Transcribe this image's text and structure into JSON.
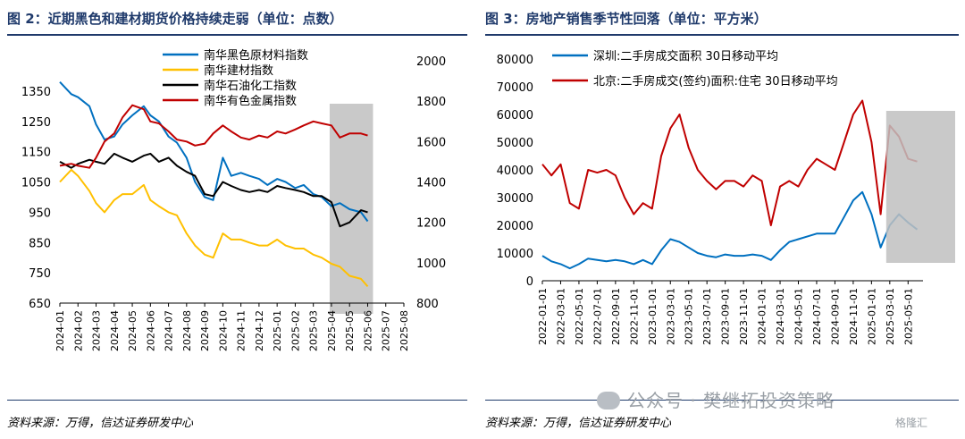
{
  "left_panel": {
    "title": "图 2：近期黑色和建材期货价格持续走弱（单位：点数）",
    "source": "资料来源：万得，信达证券研发中心"
  },
  "right_panel": {
    "title": "图 3：房地产销售季节性回落（单位：平方米）",
    "source": "资料来源：万得，信达证券研发中心"
  },
  "watermark": {
    "text": "公众号 · 樊继拓投资策略",
    "icon": "wechat-icon"
  },
  "logo": {
    "text": "格隆汇"
  },
  "colors": {
    "title": "#1f3a6b",
    "blue": "#0070c0",
    "yellow": "#ffc000",
    "black": "#000000",
    "red": "#c00000",
    "shade": "#bfbfbf"
  },
  "chart_data": [
    {
      "type": "line",
      "title": "",
      "x_labels": [
        "2024-01",
        "2024-02",
        "2024-03",
        "2024-04",
        "2024-05",
        "2024-06",
        "2024-07",
        "2024-08",
        "2024-09",
        "2024-10",
        "2024-11",
        "2024-12",
        "2025-01",
        "2025-02",
        "2025-03",
        "2025-04",
        "2025-05",
        "2025-06",
        "2025-07",
        "2025-08"
      ],
      "y_left": {
        "min": 650,
        "max": 1450,
        "ticks": [
          650,
          750,
          850,
          950,
          1050,
          1150,
          1250,
          1350
        ]
      },
      "y_right": {
        "min": 800,
        "max": 2000,
        "ticks": [
          800,
          1000,
          1200,
          1400,
          1600,
          1800,
          2000
        ]
      },
      "legend_position": "top-right",
      "shaded_region": {
        "from": "2025-04",
        "to": "2025-06"
      },
      "series": [
        {
          "name": "南华黑色原材料指数",
          "axis": "left",
          "color": "#0070c0",
          "points": [
            [
              "2024-01",
              1380
            ],
            [
              "2024-01-20",
              1340
            ],
            [
              "2024-02",
              1330
            ],
            [
              "2024-02-20",
              1300
            ],
            [
              "2024-03",
              1240
            ],
            [
              "2024-03-15",
              1190
            ],
            [
              "2024-04",
              1200
            ],
            [
              "2024-04-15",
              1240
            ],
            [
              "2024-05",
              1270
            ],
            [
              "2024-05-20",
              1300
            ],
            [
              "2024-06",
              1270
            ],
            [
              "2024-06-15",
              1250
            ],
            [
              "2024-07",
              1200
            ],
            [
              "2024-07-15",
              1180
            ],
            [
              "2024-08",
              1130
            ],
            [
              "2024-08-15",
              1050
            ],
            [
              "2024-09",
              1000
            ],
            [
              "2024-09-15",
              990
            ],
            [
              "2024-10",
              1130
            ],
            [
              "2024-10-15",
              1070
            ],
            [
              "2024-11",
              1080
            ],
            [
              "2024-11-15",
              1070
            ],
            [
              "2024-12",
              1060
            ],
            [
              "2024-12-15",
              1040
            ],
            [
              "2025-01",
              1060
            ],
            [
              "2025-01-15",
              1050
            ],
            [
              "2025-02",
              1030
            ],
            [
              "2025-02-15",
              1040
            ],
            [
              "2025-03",
              1010
            ],
            [
              "2025-03-15",
              1000
            ],
            [
              "2025-04",
              970
            ],
            [
              "2025-04-15",
              980
            ],
            [
              "2025-05",
              960
            ],
            [
              "2025-05-20",
              950
            ],
            [
              "2025-06",
              920
            ]
          ]
        },
        {
          "name": "南华建材指数",
          "axis": "left",
          "color": "#ffc000",
          "points": [
            [
              "2024-01",
              1050
            ],
            [
              "2024-01-20",
              1090
            ],
            [
              "2024-02",
              1070
            ],
            [
              "2024-02-20",
              1020
            ],
            [
              "2024-03",
              980
            ],
            [
              "2024-03-15",
              950
            ],
            [
              "2024-04",
              990
            ],
            [
              "2024-04-15",
              1010
            ],
            [
              "2024-05",
              1010
            ],
            [
              "2024-05-20",
              1040
            ],
            [
              "2024-06",
              990
            ],
            [
              "2024-06-15",
              970
            ],
            [
              "2024-07",
              950
            ],
            [
              "2024-07-15",
              940
            ],
            [
              "2024-08",
              880
            ],
            [
              "2024-08-15",
              840
            ],
            [
              "2024-09",
              810
            ],
            [
              "2024-09-15",
              800
            ],
            [
              "2024-10",
              880
            ],
            [
              "2024-10-15",
              860
            ],
            [
              "2024-11",
              860
            ],
            [
              "2024-11-15",
              850
            ],
            [
              "2024-12",
              840
            ],
            [
              "2024-12-15",
              840
            ],
            [
              "2025-01",
              860
            ],
            [
              "2025-01-15",
              840
            ],
            [
              "2025-02",
              830
            ],
            [
              "2025-02-15",
              830
            ],
            [
              "2025-03",
              810
            ],
            [
              "2025-03-15",
              800
            ],
            [
              "2025-04",
              780
            ],
            [
              "2025-04-15",
              770
            ],
            [
              "2025-05",
              740
            ],
            [
              "2025-05-20",
              730
            ],
            [
              "2025-06",
              705
            ]
          ]
        },
        {
          "name": "南华石油化工指数",
          "axis": "right",
          "color": "#000000",
          "points": [
            [
              "2024-01",
              1500
            ],
            [
              "2024-01-20",
              1470
            ],
            [
              "2024-02",
              1490
            ],
            [
              "2024-02-20",
              1510
            ],
            [
              "2024-03",
              1500
            ],
            [
              "2024-03-15",
              1490
            ],
            [
              "2024-04",
              1540
            ],
            [
              "2024-04-15",
              1520
            ],
            [
              "2024-05",
              1500
            ],
            [
              "2024-05-20",
              1530
            ],
            [
              "2024-06",
              1540
            ],
            [
              "2024-06-15",
              1500
            ],
            [
              "2024-07",
              1520
            ],
            [
              "2024-07-15",
              1480
            ],
            [
              "2024-08",
              1450
            ],
            [
              "2024-08-15",
              1430
            ],
            [
              "2024-09",
              1340
            ],
            [
              "2024-09-15",
              1330
            ],
            [
              "2024-10",
              1400
            ],
            [
              "2024-10-15",
              1380
            ],
            [
              "2024-11",
              1360
            ],
            [
              "2024-11-15",
              1350
            ],
            [
              "2024-12",
              1360
            ],
            [
              "2024-12-15",
              1350
            ],
            [
              "2025-01",
              1380
            ],
            [
              "2025-01-15",
              1370
            ],
            [
              "2025-02",
              1360
            ],
            [
              "2025-02-15",
              1350
            ],
            [
              "2025-03",
              1330
            ],
            [
              "2025-03-15",
              1330
            ],
            [
              "2025-04",
              1300
            ],
            [
              "2025-04-15",
              1180
            ],
            [
              "2025-05",
              1200
            ],
            [
              "2025-05-20",
              1260
            ],
            [
              "2025-06",
              1250
            ]
          ]
        },
        {
          "name": "南华有色金属指数",
          "axis": "right",
          "color": "#c00000",
          "points": [
            [
              "2024-01",
              1480
            ],
            [
              "2024-01-20",
              1490
            ],
            [
              "2024-02",
              1480
            ],
            [
              "2024-02-20",
              1470
            ],
            [
              "2024-03",
              1520
            ],
            [
              "2024-03-15",
              1600
            ],
            [
              "2024-04",
              1640
            ],
            [
              "2024-04-15",
              1720
            ],
            [
              "2024-05",
              1780
            ],
            [
              "2024-05-20",
              1760
            ],
            [
              "2024-06",
              1700
            ],
            [
              "2024-06-15",
              1690
            ],
            [
              "2024-07",
              1650
            ],
            [
              "2024-07-15",
              1610
            ],
            [
              "2024-08",
              1600
            ],
            [
              "2024-08-15",
              1580
            ],
            [
              "2024-09",
              1590
            ],
            [
              "2024-09-15",
              1640
            ],
            [
              "2024-10",
              1680
            ],
            [
              "2024-10-15",
              1650
            ],
            [
              "2024-11",
              1620
            ],
            [
              "2024-11-15",
              1610
            ],
            [
              "2024-12",
              1630
            ],
            [
              "2024-12-15",
              1620
            ],
            [
              "2025-01",
              1650
            ],
            [
              "2025-01-15",
              1640
            ],
            [
              "2025-02",
              1660
            ],
            [
              "2025-02-15",
              1680
            ],
            [
              "2025-03",
              1700
            ],
            [
              "2025-03-15",
              1690
            ],
            [
              "2025-04",
              1680
            ],
            [
              "2025-04-15",
              1620
            ],
            [
              "2025-05",
              1640
            ],
            [
              "2025-05-20",
              1640
            ],
            [
              "2025-06",
              1630
            ]
          ]
        }
      ]
    },
    {
      "type": "line",
      "title": "",
      "x_labels": [
        "2022-01-01",
        "2022-03-01",
        "2022-05-01",
        "2022-07-01",
        "2022-09-01",
        "2022-11-01",
        "2023-01-01",
        "2023-03-01",
        "2023-05-01",
        "2023-07-01",
        "2023-09-01",
        "2023-11-01",
        "2024-01-01",
        "2024-03-01",
        "2024-05-01",
        "2024-07-01",
        "2024-09-01",
        "2024-11-01",
        "2025-01-01",
        "2025-03-01",
        "2025-05-01"
      ],
      "y": {
        "min": 0,
        "max": 80000,
        "ticks": [
          0,
          10000,
          20000,
          30000,
          40000,
          50000,
          60000,
          70000,
          80000
        ]
      },
      "legend_position": "top-left",
      "shaded_region": {
        "from": "2025-03",
        "to": "2025-06"
      },
      "series": [
        {
          "name": "深圳:二手房成交面积 30日移动平均",
          "color": "#0070c0",
          "points": [
            [
              "2022-01",
              9000
            ],
            [
              "2022-02",
              7000
            ],
            [
              "2022-03",
              6000
            ],
            [
              "2022-04",
              4500
            ],
            [
              "2022-05",
              6000
            ],
            [
              "2022-06",
              8000
            ],
            [
              "2022-07",
              7500
            ],
            [
              "2022-08",
              7000
            ],
            [
              "2022-09",
              7500
            ],
            [
              "2022-10",
              7000
            ],
            [
              "2022-11",
              6000
            ],
            [
              "2022-12",
              7500
            ],
            [
              "2023-01",
              6000
            ],
            [
              "2023-02",
              11000
            ],
            [
              "2023-03",
              15000
            ],
            [
              "2023-04",
              14000
            ],
            [
              "2023-05",
              12000
            ],
            [
              "2023-06",
              10000
            ],
            [
              "2023-07",
              9000
            ],
            [
              "2023-08",
              8500
            ],
            [
              "2023-09",
              9500
            ],
            [
              "2023-10",
              9000
            ],
            [
              "2023-11",
              9000
            ],
            [
              "2023-12",
              9500
            ],
            [
              "2024-01",
              9000
            ],
            [
              "2024-02",
              7500
            ],
            [
              "2024-03",
              11000
            ],
            [
              "2024-04",
              14000
            ],
            [
              "2024-05",
              15000
            ],
            [
              "2024-06",
              16000
            ],
            [
              "2024-07",
              17000
            ],
            [
              "2024-08",
              17000
            ],
            [
              "2024-09",
              17000
            ],
            [
              "2024-10",
              23000
            ],
            [
              "2024-11",
              29000
            ],
            [
              "2024-12",
              32000
            ],
            [
              "2025-01",
              24000
            ],
            [
              "2025-02",
              12000
            ],
            [
              "2025-03",
              20000
            ],
            [
              "2025-04",
              24000
            ],
            [
              "2025-05",
              21000
            ],
            [
              "2025-06",
              18500
            ]
          ]
        },
        {
          "name": "北京:二手房成交(签约)面积:住宅 30日移动平均",
          "color": "#c00000",
          "points": [
            [
              "2022-01",
              42000
            ],
            [
              "2022-02",
              38000
            ],
            [
              "2022-03",
              42000
            ],
            [
              "2022-04",
              28000
            ],
            [
              "2022-05",
              26000
            ],
            [
              "2022-06",
              40000
            ],
            [
              "2022-07",
              39000
            ],
            [
              "2022-08",
              40000
            ],
            [
              "2022-09",
              38000
            ],
            [
              "2022-10",
              30000
            ],
            [
              "2022-11",
              24000
            ],
            [
              "2022-12",
              28000
            ],
            [
              "2023-01",
              26000
            ],
            [
              "2023-02",
              45000
            ],
            [
              "2023-03",
              55000
            ],
            [
              "2023-04",
              60000
            ],
            [
              "2023-05",
              48000
            ],
            [
              "2023-06",
              40000
            ],
            [
              "2023-07",
              36000
            ],
            [
              "2023-08",
              33000
            ],
            [
              "2023-09",
              36000
            ],
            [
              "2023-10",
              36000
            ],
            [
              "2023-11",
              34000
            ],
            [
              "2023-12",
              38000
            ],
            [
              "2024-01",
              36000
            ],
            [
              "2024-02",
              20000
            ],
            [
              "2024-03",
              34000
            ],
            [
              "2024-04",
              36000
            ],
            [
              "2024-05",
              34000
            ],
            [
              "2024-06",
              40000
            ],
            [
              "2024-07",
              44000
            ],
            [
              "2024-08",
              42000
            ],
            [
              "2024-09",
              40000
            ],
            [
              "2024-10",
              50000
            ],
            [
              "2024-11",
              60000
            ],
            [
              "2024-12",
              65000
            ],
            [
              "2025-01",
              50000
            ],
            [
              "2025-02",
              24000
            ],
            [
              "2025-03",
              56000
            ],
            [
              "2025-04",
              52000
            ],
            [
              "2025-05",
              44000
            ],
            [
              "2025-06",
              43000
            ]
          ]
        }
      ]
    }
  ]
}
